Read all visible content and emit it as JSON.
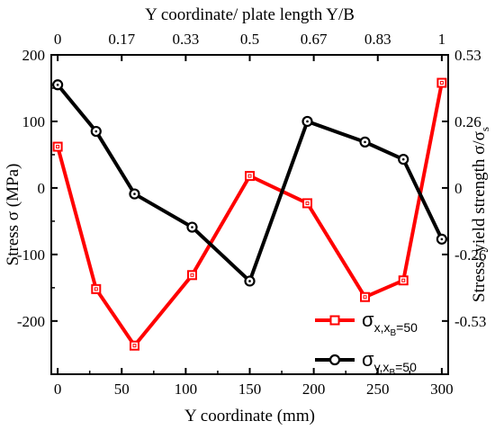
{
  "chart_data": {
    "type": "line",
    "xlabel": "Y coordinate (mm)",
    "ylabel": "Stress σ (MPa)",
    "top_xlabel": "Y coordinate/ plate length Y/B",
    "right_ylabel": "Stress/ yield strength σ/σ",
    "right_ylabel_sub": "s",
    "xlim": [
      -5,
      305
    ],
    "ylim": [
      -280,
      200
    ],
    "x_ticks": [
      0,
      50,
      100,
      150,
      200,
      250,
      300
    ],
    "y_ticks": [
      200,
      100,
      0,
      -100,
      -200
    ],
    "y_tick_labels": [
      "200",
      "100",
      "0",
      "-100",
      "-200"
    ],
    "top_ticks": [
      {
        "x": 0,
        "label": "0"
      },
      {
        "x": 50,
        "label": "0.17"
      },
      {
        "x": 100,
        "label": "0.33"
      },
      {
        "x": 150,
        "label": "0.5"
      },
      {
        "x": 200,
        "label": "0.67"
      },
      {
        "x": 250,
        "label": "0.83"
      },
      {
        "x": 300,
        "label": "1"
      }
    ],
    "right_ticks": [
      {
        "y": 200,
        "label": "0.53"
      },
      {
        "y": 100,
        "label": "0.26"
      },
      {
        "y": 0,
        "label": "0"
      },
      {
        "y": -100,
        "label": "-0.26"
      },
      {
        "y": -200,
        "label": "-0.53"
      }
    ],
    "series": [
      {
        "name": "σx,xB=50",
        "name_main": "σ",
        "name_sub": "x,x",
        "name_subsub": "B",
        "name_tail": "=50",
        "color": "#ff0000",
        "marker": "square",
        "x": [
          0,
          30,
          60,
          105,
          150,
          195,
          240,
          270,
          300
        ],
        "y": [
          62,
          -152,
          -237,
          -131,
          18,
          -23,
          -164,
          -139,
          158
        ]
      },
      {
        "name": "σy,xB=50",
        "name_main": "σ",
        "name_sub": "y,x",
        "name_subsub": "B",
        "name_tail": "=50",
        "color": "#000000",
        "marker": "circle",
        "x": [
          0,
          30,
          60,
          105,
          150,
          195,
          240,
          270,
          300
        ],
        "y": [
          155,
          85,
          -9,
          -59,
          -140,
          100,
          69,
          43,
          -77
        ]
      }
    ],
    "grid": false,
    "legend_position": "bottom-right"
  }
}
